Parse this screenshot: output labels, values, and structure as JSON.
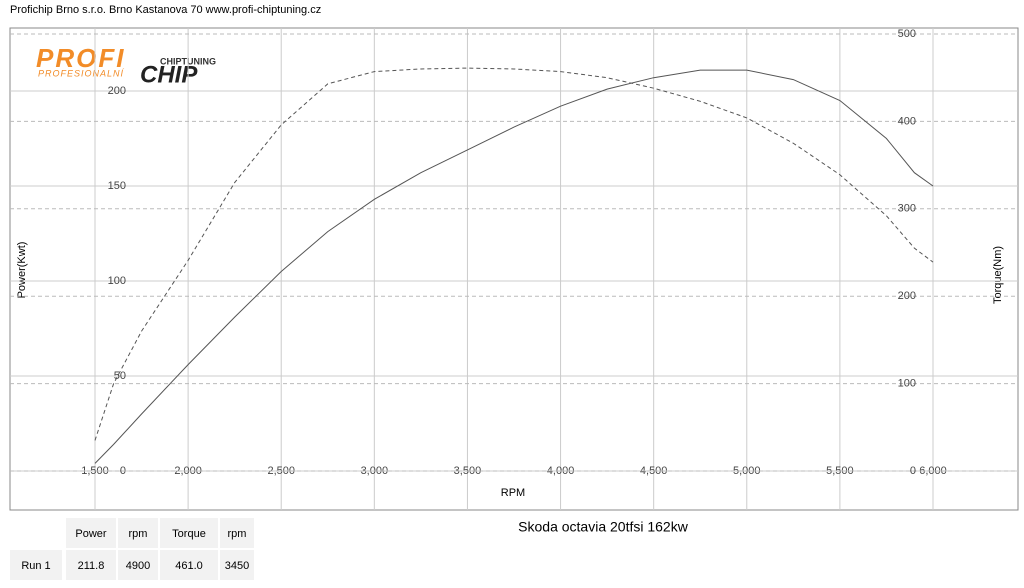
{
  "header": "Profichip Brno s.r.o. Brno Kastanova 70 www.profi-chiptuning.cz",
  "logo": {
    "profi": "PROFI",
    "chiptuning": "CHIPTUNING",
    "profesionalni": "PROFESIONALNÍ",
    "chip": "CHIP"
  },
  "chart_data": {
    "type": "line",
    "title": "Skoda octavia 20tfsi 162kw",
    "x_label": "RPM",
    "y_label": "Power(Kwt)",
    "y2_label": "Torque(Nm)",
    "x": [
      1500,
      1600,
      1750,
      2000,
      2250,
      2500,
      2750,
      3000,
      3250,
      3500,
      3750,
      4000,
      4250,
      4500,
      4750,
      5000,
      5250,
      5500,
      5750,
      5900,
      6000
    ],
    "series": [
      {
        "name": "Power",
        "color": "#555555",
        "dash": false,
        "axis": "y",
        "values": [
          4,
          14,
          30,
          56,
          81,
          105,
          126,
          143,
          157,
          169,
          181,
          192,
          201,
          207,
          211,
          211,
          206,
          195,
          175,
          157,
          150
        ]
      },
      {
        "name": "Torque",
        "color": "#555555",
        "dash": true,
        "axis": "y2",
        "values": [
          35,
          100,
          160,
          241,
          330,
          396,
          443,
          457,
          460,
          461,
          460,
          457,
          450,
          438,
          423,
          404,
          375,
          339,
          292,
          255,
          239
        ]
      }
    ],
    "xlim": [
      1500,
      6000
    ],
    "xticks": [
      {
        "value": 1500,
        "label": "1,500"
      },
      {
        "value": 2000,
        "label": "2,000"
      },
      {
        "value": 2500,
        "label": "2,500"
      },
      {
        "value": 3000,
        "label": "3,000"
      },
      {
        "value": 3500,
        "label": "3,500"
      },
      {
        "value": 4000,
        "label": "4,000"
      },
      {
        "value": 4500,
        "label": "4,500"
      },
      {
        "value": 5000,
        "label": "5,000"
      },
      {
        "value": 5500,
        "label": "5,500"
      },
      {
        "value": 6000,
        "label": "6,000"
      }
    ],
    "ylim": [
      0,
      230
    ],
    "yticks": [
      0,
      50,
      100,
      150,
      200
    ],
    "y2lim": [
      0,
      500
    ],
    "y2ticks": [
      0,
      100,
      200,
      300,
      400,
      500
    ],
    "grid": true
  },
  "table": {
    "columns": [
      "",
      "Power",
      "rpm",
      "Torque",
      "rpm"
    ],
    "rows": [
      [
        "Run 1",
        "211.8",
        "4900",
        "461.0",
        "3450"
      ]
    ]
  }
}
